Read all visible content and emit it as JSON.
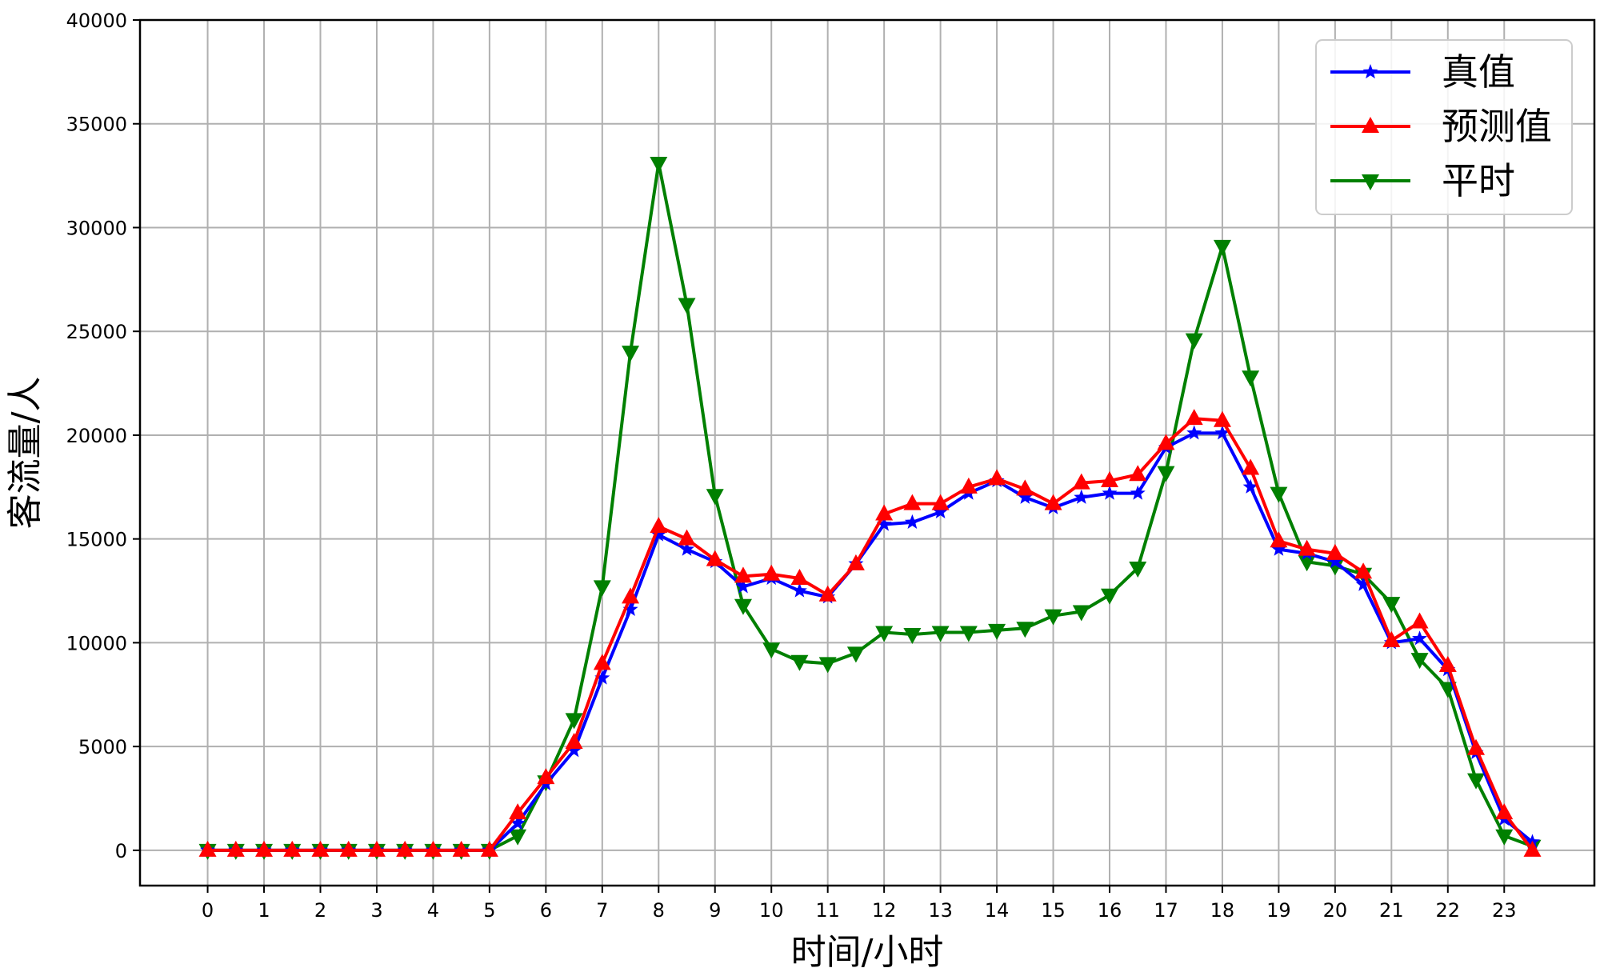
{
  "chart_data": {
    "type": "line",
    "xlabel": "时间/小时",
    "ylabel": "客流量/人",
    "xlim": [
      -1.2,
      24.6
    ],
    "ylim": [
      -1700,
      40000
    ],
    "x_ticks": [
      0,
      1,
      2,
      3,
      4,
      5,
      6,
      7,
      8,
      9,
      10,
      11,
      12,
      13,
      14,
      15,
      16,
      17,
      18,
      19,
      20,
      21,
      22,
      23
    ],
    "y_ticks": [
      0,
      5000,
      10000,
      15000,
      20000,
      25000,
      30000,
      35000,
      40000
    ],
    "grid": true,
    "legend_position": "top-right",
    "x": [
      0,
      0.5,
      1,
      1.5,
      2,
      2.5,
      3,
      3.5,
      4,
      4.5,
      5,
      5.5,
      6,
      6.5,
      7,
      7.5,
      8,
      8.5,
      9,
      9.5,
      10,
      10.5,
      11,
      11.5,
      12,
      12.5,
      13,
      13.5,
      14,
      14.5,
      15,
      15.5,
      16,
      16.5,
      17,
      17.5,
      18,
      18.5,
      19,
      19.5,
      20,
      20.5,
      21,
      21.5,
      22,
      22.5,
      23,
      23.5
    ],
    "series": [
      {
        "name": "真值",
        "color": "#0000ff",
        "marker": "star",
        "values": [
          0,
          0,
          0,
          0,
          0,
          0,
          0,
          0,
          0,
          0,
          0,
          1300,
          3200,
          4800,
          8300,
          11600,
          15200,
          14500,
          13900,
          12700,
          13100,
          12500,
          12200,
          13800,
          15700,
          15800,
          16300,
          17200,
          17800,
          17000,
          16500,
          17000,
          17200,
          17200,
          19400,
          20100,
          20100,
          17500,
          14500,
          14300,
          13900,
          12800,
          10000,
          10200,
          8700,
          4700,
          1500,
          400
        ]
      },
      {
        "name": "预测值",
        "color": "#ff0000",
        "marker": "triangle-up",
        "values": [
          0,
          0,
          0,
          0,
          0,
          0,
          0,
          0,
          0,
          0,
          0,
          1800,
          3500,
          5200,
          9000,
          12200,
          15600,
          15000,
          14000,
          13200,
          13300,
          13100,
          12300,
          13800,
          16200,
          16700,
          16700,
          17500,
          17900,
          17400,
          16700,
          17700,
          17800,
          18100,
          19600,
          20800,
          20700,
          18400,
          14900,
          14500,
          14300,
          13400,
          10100,
          11000,
          8900,
          4900,
          1800,
          0
        ]
      },
      {
        "name": "平时",
        "color": "#008000",
        "marker": "triangle-down",
        "values": [
          0,
          0,
          0,
          0,
          0,
          0,
          0,
          0,
          0,
          0,
          0,
          700,
          3300,
          6300,
          12700,
          24000,
          33100,
          26300,
          17100,
          11800,
          9700,
          9100,
          9000,
          9500,
          10500,
          10400,
          10500,
          10500,
          10600,
          10700,
          11300,
          11500,
          12300,
          13600,
          18200,
          24600,
          29100,
          22800,
          17200,
          13900,
          13700,
          13300,
          11900,
          9200,
          7800,
          3400,
          700,
          200
        ]
      }
    ]
  }
}
